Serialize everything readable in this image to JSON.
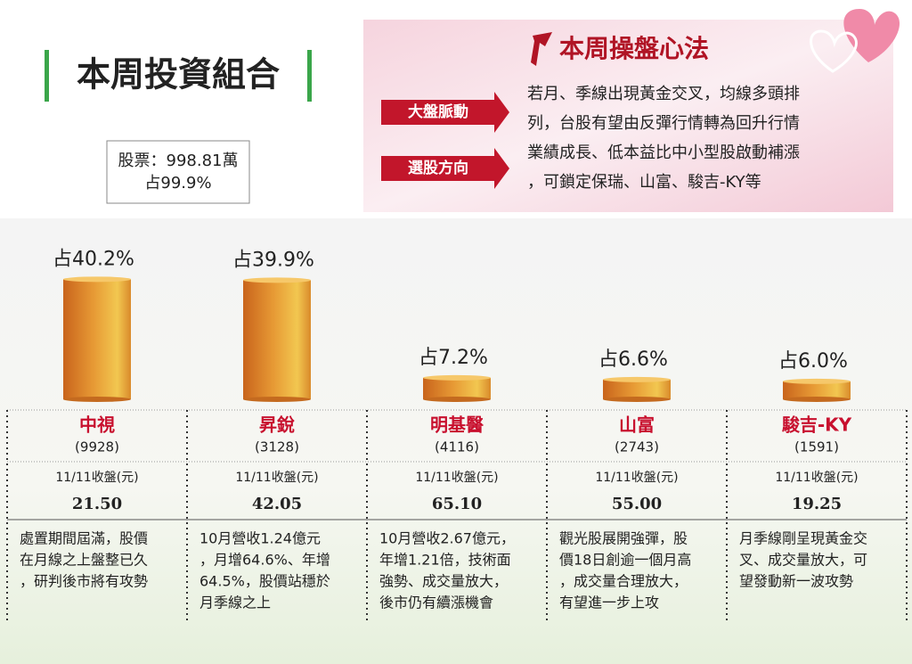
{
  "header": {
    "title": "本周投資組合"
  },
  "holdings": {
    "lines": [
      "股票：998.81萬",
      "占99.9%"
    ]
  },
  "strategy": {
    "title": "本周操盤心法",
    "tags": [
      "大盤脈動",
      "選股方向"
    ],
    "lines": [
      "若月、季線出現黃金交叉，均線多頭排",
      "列，台股有望由反彈行情轉為回升行情",
      "業績成長、低本益比中小型股啟動補漲",
      "，可鎖定保瑞、山富、駿吉-KY等"
    ]
  },
  "chart_data": {
    "type": "bar",
    "categories": [
      "中視",
      "昇銳",
      "明基醫",
      "山富",
      "駿吉-KY"
    ],
    "values": [
      40.2,
      39.9,
      7.2,
      6.6,
      6.0
    ],
    "value_labels": [
      "占40.2%",
      "占39.9%",
      "占7.2%",
      "占6.6%",
      "占6.0%"
    ],
    "color": "#d98a2b"
  },
  "stocks": [
    {
      "code": "(9928)",
      "close_label": "11/11收盤(元)",
      "close": "21.50",
      "note": [
        "處置期間屆滿，股價",
        "在月線之上盤整已久",
        "，研判後市將有攻勢"
      ]
    },
    {
      "code": "(3128)",
      "close_label": "11/11收盤(元)",
      "close": "42.05",
      "note": [
        "10月營收1.24億元",
        "，月增64.6%、年增",
        "64.5%，股價站穩於",
        "月季線之上"
      ]
    },
    {
      "code": "(4116)",
      "close_label": "11/11收盤(元)",
      "close": "65.10",
      "note": [
        "10月營收2.67億元，",
        "年增1.21倍，技術面",
        "強勢、成交量放大，",
        "後市仍有續漲機會"
      ]
    },
    {
      "code": "(2743)",
      "close_label": "11/11收盤(元)",
      "close": "55.00",
      "note": [
        "觀光股展開強彈，股",
        "價18日創逾一個月高",
        "，成交量合理放大，",
        "有望進一步上攻"
      ]
    },
    {
      "code": "(1591)",
      "close_label": "11/11收盤(元)",
      "close": "19.25",
      "note": [
        "月季線剛呈現黃金交",
        "叉、成交量放大，可",
        "望發動新一波攻勢"
      ]
    }
  ]
}
